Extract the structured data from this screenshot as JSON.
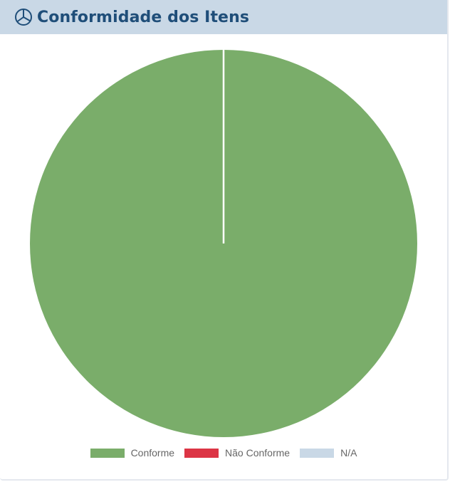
{
  "header": {
    "title": "Conformidade dos Itens",
    "icon": "pie-chart-icon",
    "text_color": "#1f4e79",
    "background": "#c9d8e6"
  },
  "chart_data": {
    "type": "pie",
    "title": "",
    "categories": [
      "Conforme",
      "Não Conforme",
      "N/A"
    ],
    "values": [
      100,
      0,
      0
    ],
    "colors": [
      "#7aad6a",
      "#dc3545",
      "#c9d8e6"
    ],
    "legend_position": "bottom",
    "slice_border_color": "#ffffff"
  }
}
